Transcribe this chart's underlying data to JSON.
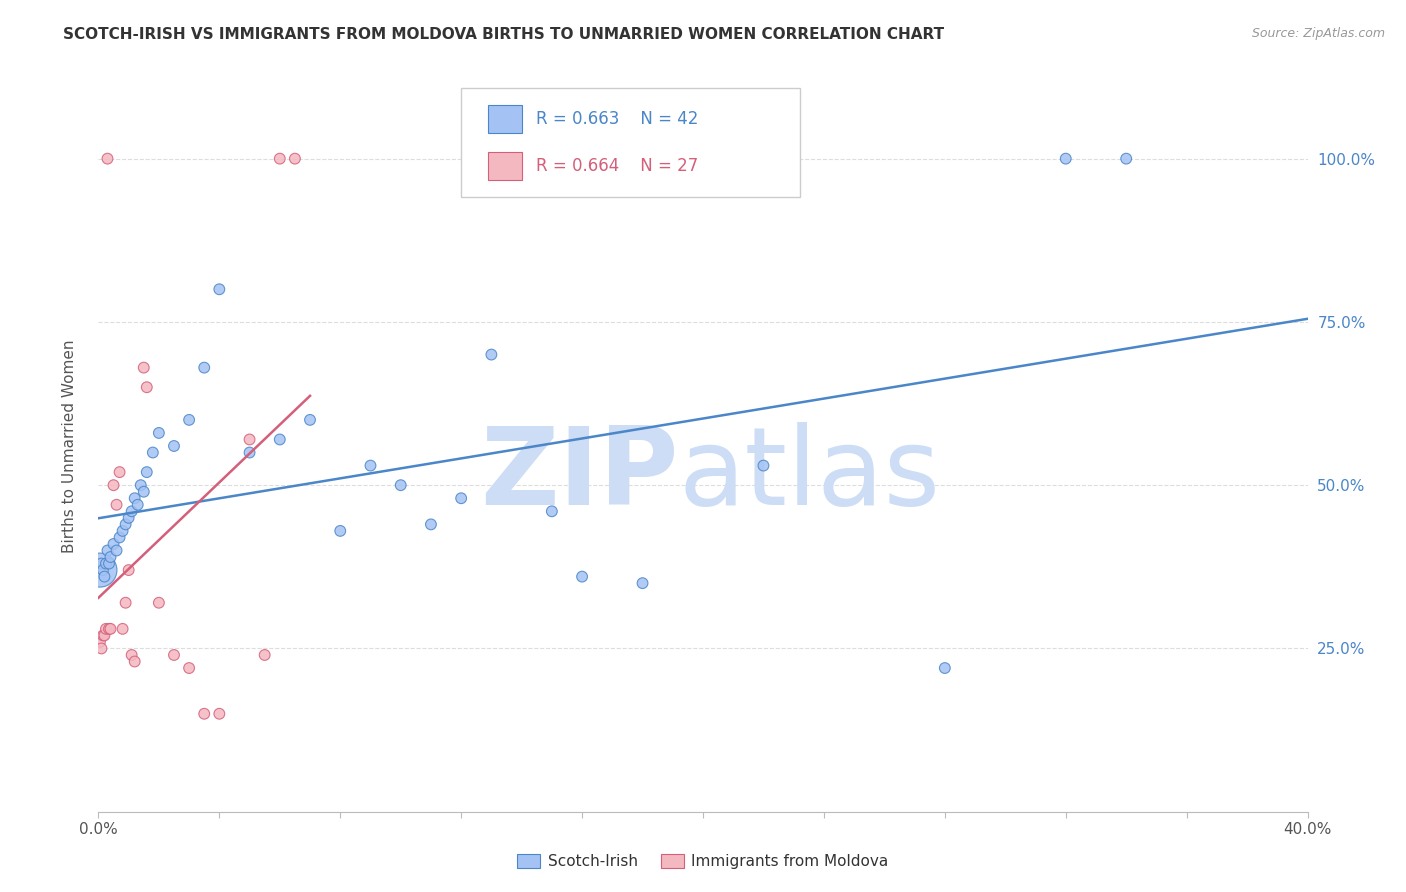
{
  "title": "SCOTCH-IRISH VS IMMIGRANTS FROM MOLDOVA BIRTHS TO UNMARRIED WOMEN CORRELATION CHART",
  "source": "Source: ZipAtlas.com",
  "ylabel_left": "Births to Unmarried Women",
  "legend_blue_label": "Scotch-Irish",
  "legend_pink_label": "Immigrants from Moldova",
  "legend_blue_r": "R = 0.663",
  "legend_blue_n": "N = 42",
  "legend_pink_r": "R = 0.664",
  "legend_pink_n": "N = 27",
  "blue_color": "#a4c2f4",
  "pink_color": "#f4b8c1",
  "line_blue_color": "#4a86c8",
  "line_pink_color": "#d45f7a",
  "watermark_zip_color": "#ccddf5",
  "watermark_atlas_color": "#ccddf5",
  "title_color": "#333333",
  "source_color": "#999999",
  "right_axis_color": "#4a86c8",
  "background_color": "#ffffff",
  "grid_color": "#dddddd",
  "blue_scatter_x": [
    0.05,
    0.1,
    0.15,
    0.2,
    0.25,
    0.3,
    0.35,
    0.4,
    0.5,
    0.6,
    0.7,
    0.8,
    0.9,
    1.0,
    1.1,
    1.2,
    1.3,
    1.4,
    1.5,
    1.6,
    1.8,
    2.0,
    2.5,
    3.0,
    3.5,
    4.0,
    5.0,
    6.0,
    7.0,
    8.0,
    9.0,
    10.0,
    11.0,
    12.0,
    13.0,
    15.0,
    16.0,
    18.0,
    22.0,
    28.0,
    32.0,
    34.0
  ],
  "blue_scatter_y": [
    37,
    38,
    37,
    36,
    38,
    40,
    38,
    39,
    41,
    40,
    42,
    43,
    44,
    45,
    46,
    48,
    47,
    50,
    49,
    52,
    55,
    58,
    56,
    60,
    68,
    80,
    55,
    57,
    60,
    43,
    53,
    50,
    44,
    48,
    70,
    46,
    36,
    35,
    53,
    22,
    100,
    100
  ],
  "blue_scatter_size": [
    600,
    60,
    60,
    60,
    60,
    60,
    60,
    60,
    60,
    60,
    60,
    60,
    60,
    60,
    60,
    60,
    60,
    60,
    60,
    60,
    60,
    60,
    60,
    60,
    60,
    60,
    60,
    60,
    60,
    60,
    60,
    60,
    60,
    60,
    60,
    60,
    60,
    60,
    60,
    60,
    60,
    60
  ],
  "pink_scatter_x": [
    0.05,
    0.1,
    0.15,
    0.2,
    0.25,
    0.3,
    0.35,
    0.4,
    0.5,
    0.6,
    0.7,
    0.8,
    0.9,
    1.0,
    1.1,
    1.2,
    1.5,
    1.6,
    2.0,
    2.5,
    3.0,
    3.5,
    4.0,
    5.0,
    5.5,
    6.0,
    6.5
  ],
  "pink_scatter_y": [
    26,
    25,
    27,
    27,
    28,
    100,
    28,
    28,
    50,
    47,
    52,
    28,
    32,
    37,
    24,
    23,
    68,
    65,
    32,
    24,
    22,
    15,
    15,
    57,
    24,
    100,
    100
  ],
  "pink_scatter_size": [
    60,
    60,
    60,
    60,
    60,
    60,
    60,
    60,
    60,
    60,
    60,
    60,
    60,
    60,
    60,
    60,
    60,
    60,
    60,
    60,
    60,
    60,
    60,
    60,
    60,
    60,
    60
  ],
  "xlim": [
    0,
    40
  ],
  "ylim": [
    0,
    112
  ],
  "yticks": [
    0,
    25,
    50,
    75,
    100
  ],
  "xticks_major": [
    0,
    5,
    10,
    15,
    20,
    25,
    30,
    35,
    40
  ],
  "figsize": [
    14.06,
    8.92
  ],
  "dpi": 100
}
